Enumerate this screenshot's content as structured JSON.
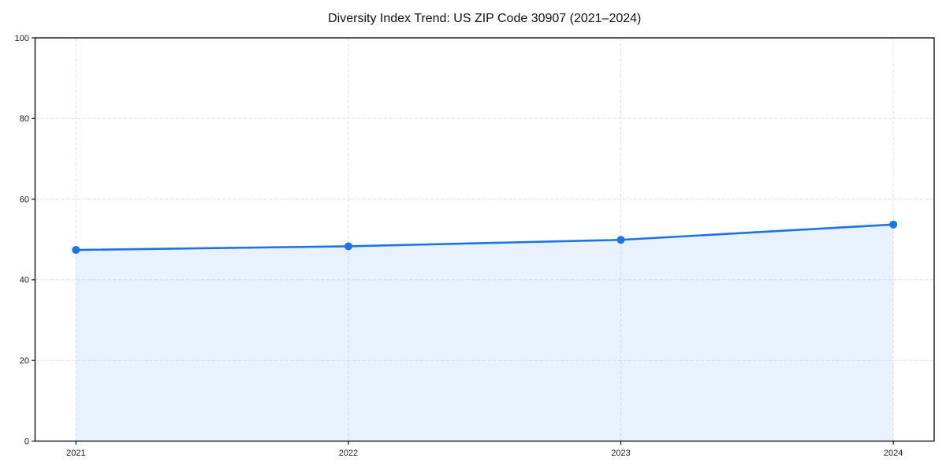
{
  "page": {
    "background": "#ffffff"
  },
  "chart_data": {
    "type": "area",
    "title": "Diversity Index Trend: US ZIP Code 30907 (2021–2024)",
    "series_name": "Diversity Index",
    "categories": [
      "2021",
      "2022",
      "2023",
      "2024"
    ],
    "values": [
      47.4,
      48.3,
      49.9,
      53.7
    ],
    "xlabel": "",
    "ylabel": "",
    "ylim": [
      0,
      100
    ],
    "yticks": [
      0,
      20,
      40,
      60,
      80,
      100
    ],
    "x_margin": 0.05,
    "grid": "dashed-both-axes",
    "legend": "none",
    "marker": "circle",
    "colors": {
      "line": "#1a73e8",
      "marker": "#1a73e8",
      "fill": "rgba(26,115,232,0.10)",
      "grid": "#e2e2e2",
      "axis": "#111111",
      "text": "#1a1a1a"
    }
  }
}
